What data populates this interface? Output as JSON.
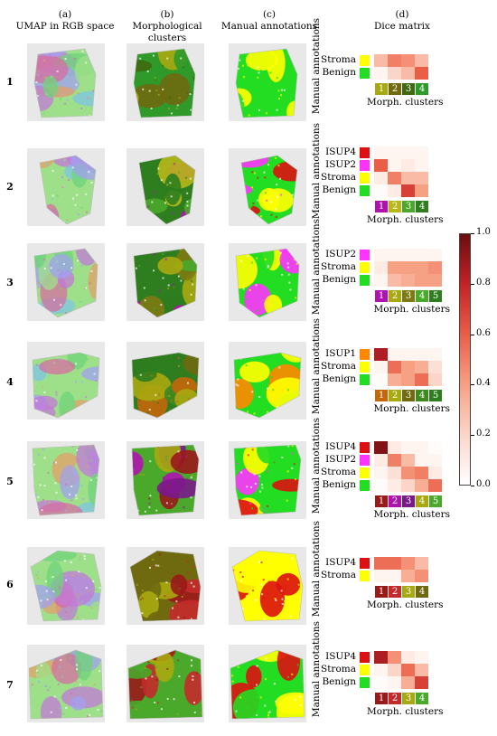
{
  "column_headers": [
    {
      "letter": "(a)",
      "title": "UMAP in RGB space"
    },
    {
      "letter": "(b)",
      "title": "Morphological clusters"
    },
    {
      "letter": "(c)",
      "title": "Manual annotations"
    },
    {
      "letter": "(d)",
      "title": "Dice matrix"
    }
  ],
  "axis_labels": {
    "y": "Manual annotations",
    "x": "Morph. clusters"
  },
  "colorbar": {
    "min": 0.0,
    "max": 1.0,
    "ticks": [
      "1.0",
      "0.8",
      "0.6",
      "0.4",
      "0.2",
      "0.0"
    ]
  },
  "label_colors": {
    "Stroma": "#ffff00",
    "Benign": "#22dd22",
    "ISUP1": "#ff8800",
    "ISUP2": "#ff33ff",
    "ISUP4": "#dd1111"
  },
  "cluster_colors": {
    "olive": "#a8a810",
    "darkolive": "#6f6a10",
    "green": "#4aa82a",
    "darkgreen": "#2e7d1e",
    "magenta": "#b012b0",
    "darkred": "#9a1a1a"
  },
  "rows": [
    {
      "number": "1",
      "clusters": [
        {
          "label": "1",
          "color": "#a8a810"
        },
        {
          "label": "2",
          "color": "#6f6a10"
        },
        {
          "label": "3",
          "color": "#3f6a10"
        },
        {
          "label": "4",
          "color": "#2f9a2a"
        }
      ],
      "annotations": [
        "Stroma",
        "Benign"
      ],
      "dice": [
        [
          0.3,
          0.5,
          0.45,
          0.3
        ],
        [
          0.05,
          0.2,
          0.3,
          0.6
        ]
      ]
    },
    {
      "number": "2",
      "clusters": [
        {
          "label": "1",
          "color": "#b012b0"
        },
        {
          "label": "2",
          "color": "#b8b818"
        },
        {
          "label": "3",
          "color": "#4aa82a"
        },
        {
          "label": "4",
          "color": "#2e7d1e"
        }
      ],
      "annotations": [
        "ISUP4",
        "ISUP2",
        "Stroma",
        "Benign"
      ],
      "dice": [
        [
          0.05,
          0.05,
          0.05,
          0.05
        ],
        [
          0.6,
          0.05,
          0.1,
          0.05
        ],
        [
          0.1,
          0.5,
          0.3,
          0.3
        ],
        [
          0.02,
          0.1,
          0.7,
          0.4
        ]
      ]
    },
    {
      "number": "3",
      "clusters": [
        {
          "label": "1",
          "color": "#b012b0"
        },
        {
          "label": "2",
          "color": "#a8a810"
        },
        {
          "label": "3",
          "color": "#7d7a12"
        },
        {
          "label": "4",
          "color": "#4aa82a"
        },
        {
          "label": "5",
          "color": "#2e7d1e"
        }
      ],
      "annotations": [
        "ISUP2",
        "Stroma",
        "Benign"
      ],
      "dice": [
        [
          0.05,
          0.05,
          0.05,
          0.05,
          0.05
        ],
        [
          0.1,
          0.4,
          0.4,
          0.4,
          0.45
        ],
        [
          0.05,
          0.3,
          0.35,
          0.4,
          0.4
        ]
      ]
    },
    {
      "number": "4",
      "clusters": [
        {
          "label": "1",
          "color": "#c4660a"
        },
        {
          "label": "2",
          "color": "#a8a810"
        },
        {
          "label": "3",
          "color": "#6f6a10"
        },
        {
          "label": "4",
          "color": "#3f8a20"
        },
        {
          "label": "5",
          "color": "#2e7d1e"
        }
      ],
      "annotations": [
        "ISUP1",
        "Stroma",
        "Benign"
      ],
      "dice": [
        [
          0.85,
          0.05,
          0.05,
          0.05,
          0.05
        ],
        [
          0.05,
          0.55,
          0.4,
          0.35,
          0.15
        ],
        [
          0.02,
          0.35,
          0.4,
          0.55,
          0.2
        ]
      ]
    },
    {
      "number": "5",
      "clusters": [
        {
          "label": "1",
          "color": "#9a1a1a"
        },
        {
          "label": "2",
          "color": "#b012b0"
        },
        {
          "label": "3",
          "color": "#7a1a8a"
        },
        {
          "label": "4",
          "color": "#a8a810"
        },
        {
          "label": "5",
          "color": "#4aa82a"
        }
      ],
      "annotations": [
        "ISUP4",
        "ISUP2",
        "Stroma",
        "Benign"
      ],
      "dice": [
        [
          0.95,
          0.1,
          0.05,
          0.05,
          0.02
        ],
        [
          0.1,
          0.5,
          0.3,
          0.05,
          0.05
        ],
        [
          0.05,
          0.15,
          0.45,
          0.5,
          0.1
        ],
        [
          0.02,
          0.1,
          0.2,
          0.35,
          0.55
        ]
      ]
    },
    {
      "number": "6",
      "clusters": [
        {
          "label": "1",
          "color": "#9a1a1a"
        },
        {
          "label": "2",
          "color": "#c42a2a"
        },
        {
          "label": "3",
          "color": "#a8a810"
        },
        {
          "label": "4",
          "color": "#6f6a10"
        }
      ],
      "annotations": [
        "ISUP4",
        "Stroma"
      ],
      "dice": [
        [
          0.55,
          0.55,
          0.45,
          0.3
        ],
        [
          0.05,
          0.05,
          0.35,
          0.45
        ]
      ]
    },
    {
      "number": "7",
      "clusters": [
        {
          "label": "1",
          "color": "#9a1a1a"
        },
        {
          "label": "2",
          "color": "#c42a2a"
        },
        {
          "label": "3",
          "color": "#a8a810"
        },
        {
          "label": "4",
          "color": "#4aa82a"
        }
      ],
      "annotations": [
        "ISUP4",
        "Stroma",
        "Benign"
      ],
      "dice": [
        [
          0.85,
          0.45,
          0.1,
          0.05
        ],
        [
          0.05,
          0.2,
          0.55,
          0.3
        ],
        [
          0.02,
          0.05,
          0.35,
          0.7
        ]
      ]
    }
  ]
}
